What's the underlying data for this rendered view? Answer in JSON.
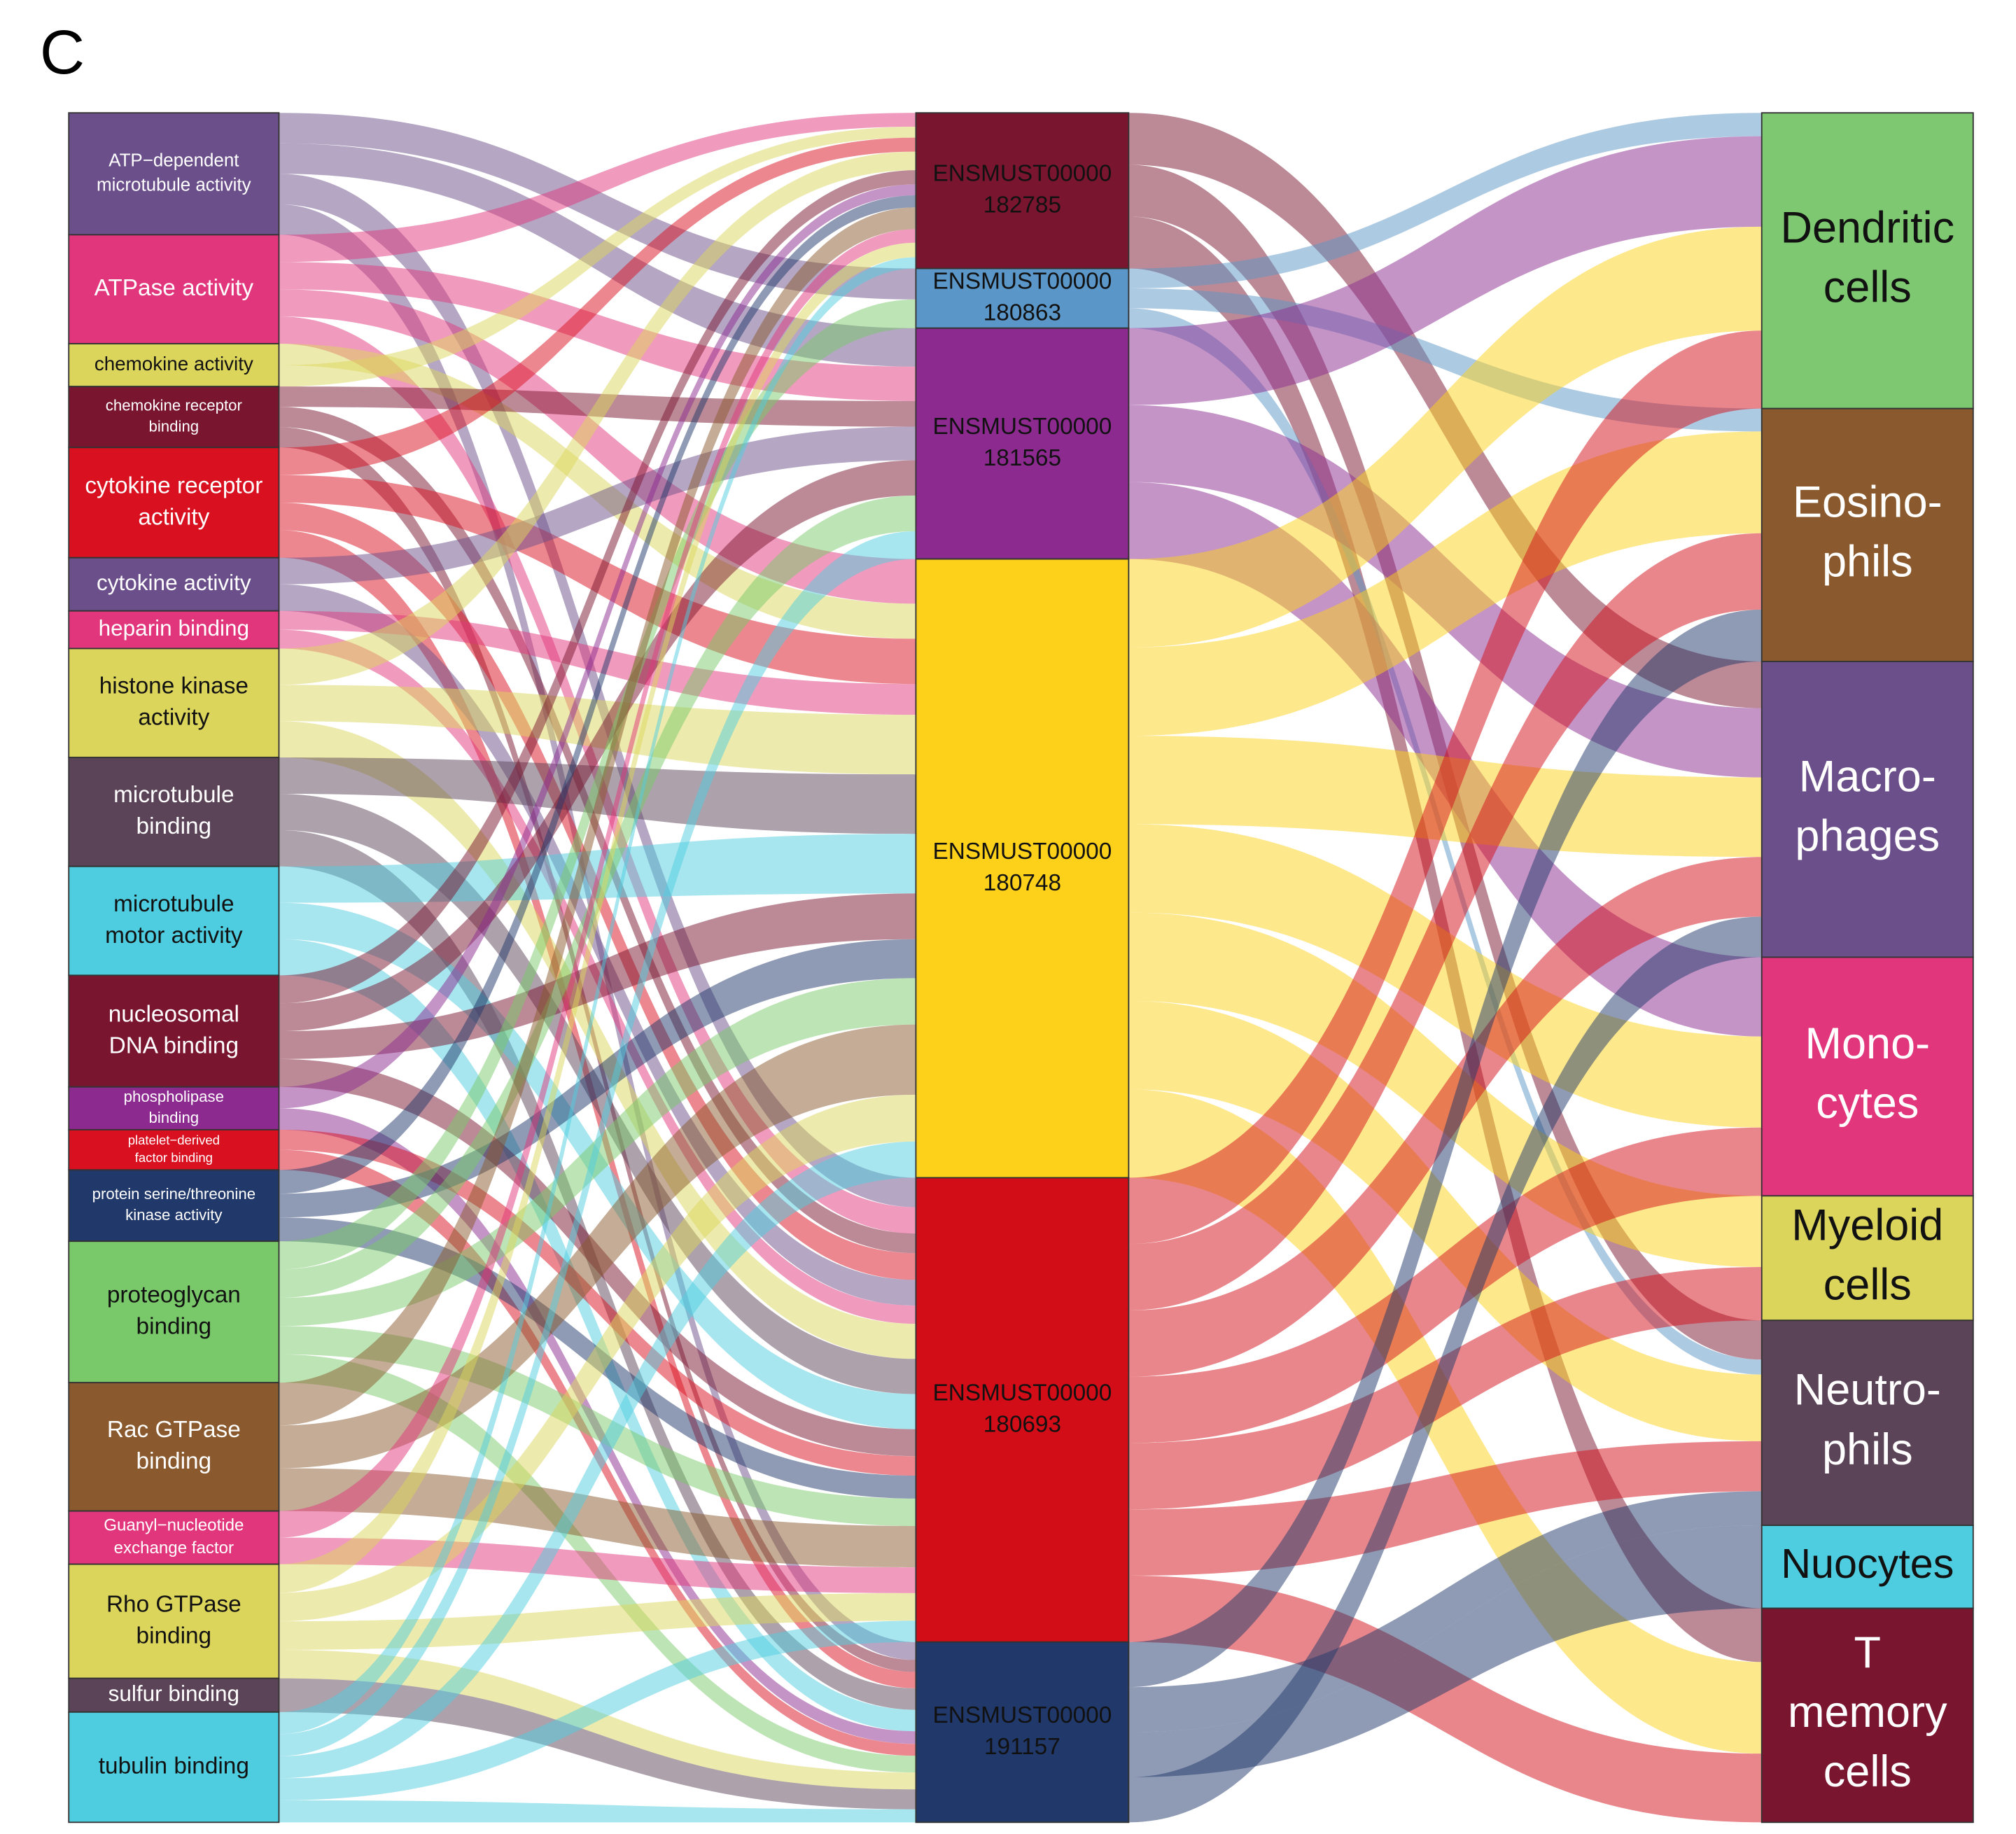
{
  "panel_label": "C",
  "columns": [
    {
      "nodes": [
        {
          "label": [
            "ATP−dependent",
            "microtubule activity"
          ],
          "color": "#6b4f8a"
        },
        {
          "label": [
            "ATPase activity"
          ],
          "color": "#e2367c"
        },
        {
          "label": [
            "chemokine activity"
          ],
          "color": "#dcd55c"
        },
        {
          "label": [
            "chemokine receptor",
            "binding"
          ],
          "color": "#7a1530"
        },
        {
          "label": [
            "cytokine receptor",
            "activity"
          ],
          "color": "#d9101f"
        },
        {
          "label": [
            "cytokine activity"
          ],
          "color": "#6b4f8a"
        },
        {
          "label": [
            "heparin binding"
          ],
          "color": "#e2367c"
        },
        {
          "label": [
            "histone kinase",
            "activity"
          ],
          "color": "#dcd55c"
        },
        {
          "label": [
            "microtubule",
            "binding"
          ],
          "color": "#5c4458"
        },
        {
          "label": [
            "microtubule",
            "motor activity"
          ],
          "color": "#4fcde0"
        },
        {
          "label": [
            "nucleosomal",
            "DNA binding"
          ],
          "color": "#7a1530"
        },
        {
          "label": [
            "phospholipase",
            "binding"
          ],
          "color": "#8c2a90"
        },
        {
          "label": [
            "platelet−derived",
            "factor binding"
          ],
          "color": "#d9101f"
        },
        {
          "label": [
            "protein serine/threonine",
            "kinase activity"
          ],
          "color": "#20386a"
        },
        {
          "label": [
            "proteoglycan",
            "binding"
          ],
          "color": "#79c96a"
        },
        {
          "label": [
            "Rac GTPase",
            "binding"
          ],
          "color": "#8a5a2e"
        },
        {
          "label": [
            "Guanyl−nucleotide",
            "exchange factor"
          ],
          "color": "#e2367c"
        },
        {
          "label": [
            "Rho GTPase",
            "binding"
          ],
          "color": "#dcd55c"
        },
        {
          "label": [
            "sulfur binding"
          ],
          "color": "#5c4458"
        },
        {
          "label": [
            "tubulin binding"
          ],
          "color": "#4fcde0"
        }
      ]
    },
    {
      "nodes": [
        {
          "label": [
            "ENSMUST00000",
            "182785"
          ],
          "color": "#7a1530"
        },
        {
          "label": [
            "ENSMUST00000",
            "180863"
          ],
          "color": "#5b96c8"
        },
        {
          "label": [
            "ENSMUST00000",
            "181565"
          ],
          "color": "#8c2a90"
        },
        {
          "label": [
            "ENSMUST00000",
            "180748"
          ],
          "color": "#fdd11a"
        },
        {
          "label": [
            "ENSMUST00000",
            "180693"
          ],
          "color": "#d30d18"
        },
        {
          "label": [
            "ENSMUST00000",
            "191157"
          ],
          "color": "#20386a"
        }
      ]
    },
    {
      "nodes": [
        {
          "label": [
            "Dendritic",
            "cells"
          ],
          "color": "#7dc870"
        },
        {
          "label": [
            "Eosino-",
            "phils"
          ],
          "color": "#8a5a2e"
        },
        {
          "label": [
            "Macro-",
            "phages"
          ],
          "color": "#6b4f8a"
        },
        {
          "label": [
            "Mono-",
            "cytes"
          ],
          "color": "#e2367c"
        },
        {
          "label": [
            "Myeloid",
            "cells"
          ],
          "color": "#dcd55c"
        },
        {
          "label": [
            "Neutro-",
            "phils"
          ],
          "color": "#5c4458"
        },
        {
          "label": [
            "Nuocytes"
          ],
          "color": "#4fcde0"
        },
        {
          "label": [
            "T",
            "memory",
            "cells"
          ],
          "color": "#7a1530"
        }
      ]
    }
  ]
}
